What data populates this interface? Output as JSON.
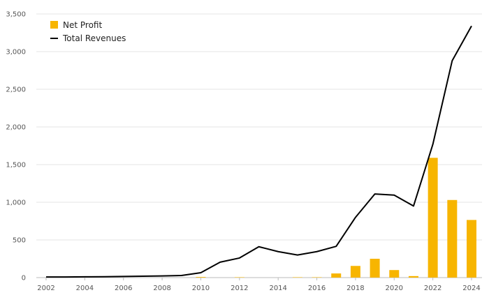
{
  "chart_data": {
    "type": "bar",
    "title": "",
    "xlabel": "",
    "ylabel": "",
    "x": [
      2002,
      2003,
      2004,
      2005,
      2006,
      2007,
      2008,
      2009,
      2010,
      2011,
      2012,
      2013,
      2014,
      2015,
      2016,
      2017,
      2018,
      2019,
      2020,
      2021,
      2022,
      2023,
      2024
    ],
    "x_tick_labels": [
      "2002",
      "2004",
      "2006",
      "2008",
      "2010",
      "2012",
      "2014",
      "2016",
      "2018",
      "2020",
      "2022",
      "2024"
    ],
    "y_tick_labels": [
      "0",
      "500",
      "1,000",
      "1,500",
      "2,000",
      "2,500",
      "3,000",
      "3,500"
    ],
    "ylim": [
      0,
      3500
    ],
    "grid": true,
    "legend_position": "top-left",
    "series": [
      {
        "name": "Net Profit",
        "type": "bar",
        "color": "#f7b500",
        "values": [
          0,
          0,
          0,
          0,
          0,
          0,
          0,
          0,
          8,
          0,
          5,
          0,
          0,
          5,
          5,
          55,
          155,
          250,
          100,
          20,
          1590,
          1030,
          765
        ]
      },
      {
        "name": "Total Revenues",
        "type": "line",
        "color": "#000000",
        "values": [
          8,
          8,
          10,
          12,
          15,
          18,
          22,
          28,
          65,
          205,
          260,
          410,
          345,
          300,
          345,
          415,
          800,
          1110,
          1095,
          950,
          1770,
          2880,
          3340
        ]
      }
    ]
  }
}
